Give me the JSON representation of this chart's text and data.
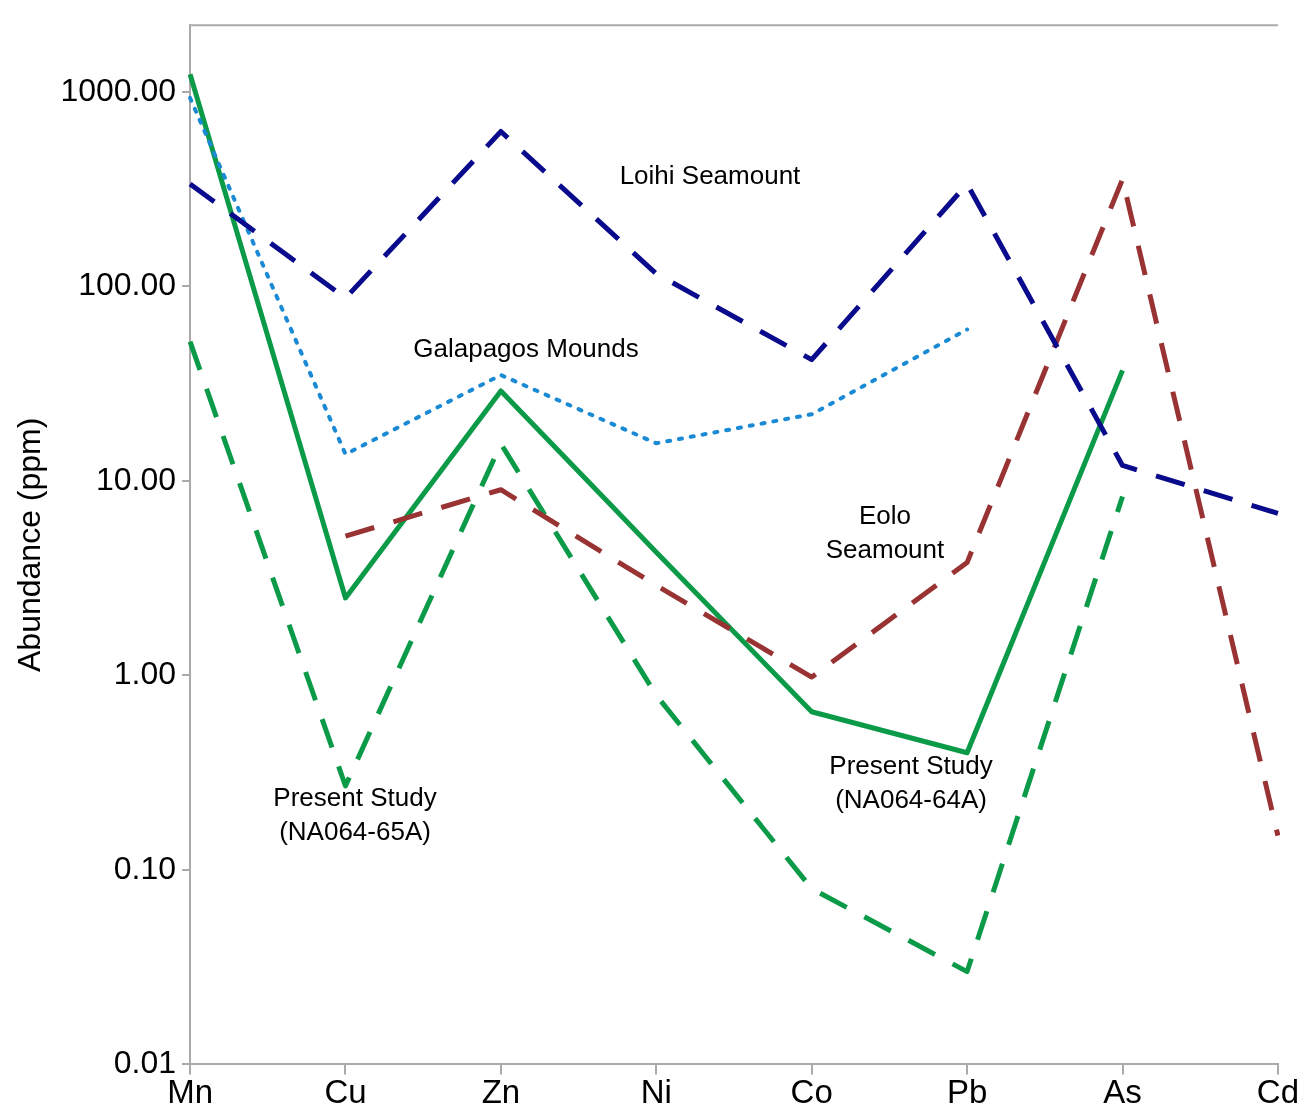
{
  "chart_data": {
    "type": "line",
    "ylabel": "Abundance (ppm)",
    "categories": [
      "Mn",
      "Cu",
      "Zn",
      "Ni",
      "Co",
      "Pb",
      "As",
      "Cd"
    ],
    "log": "y",
    "ylim": [
      0.01,
      2200
    ],
    "yticks": [
      {
        "value": 0.01,
        "label": "0.01"
      },
      {
        "value": 0.1,
        "label": "0.10"
      },
      {
        "value": 1,
        "label": "1.00"
      },
      {
        "value": 10,
        "label": "10.00"
      },
      {
        "value": 100,
        "label": "100.00"
      },
      {
        "value": 1000,
        "label": "1000.00"
      }
    ],
    "grid": false,
    "legend": false,
    "marker": "none",
    "series": [
      {
        "name": "Loihi Seamount",
        "color": "#0a0a8c",
        "line_style": "dashed",
        "values": [
          336,
          87,
          625,
          116,
          42,
          336,
          12,
          6.8
        ]
      },
      {
        "name": "Galapagos Mounds",
        "color": "#1a8ad4",
        "line_style": "dotted",
        "values": [
          930,
          13.7,
          35,
          15.6,
          22,
          60,
          null,
          null
        ]
      },
      {
        "name": "Eolo Seamount",
        "color": "#993333",
        "line_style": "dashed",
        "values": [
          null,
          5.2,
          9,
          2.9,
          0.98,
          3.8,
          355,
          0.15
        ]
      },
      {
        "name": "Present Study (NA064-64A)",
        "color": "#0a9a48",
        "line_style": "solid",
        "values": [
          1230,
          2.5,
          29,
          4.3,
          0.65,
          0.4,
          37,
          null
        ]
      },
      {
        "name": "Present Study (NA064-65A)",
        "color": "#0a9a48",
        "line_style": "dashed",
        "values": [
          52,
          0.27,
          15.5,
          0.79,
          0.08,
          0.03,
          8.3,
          null
        ]
      }
    ]
  }
}
